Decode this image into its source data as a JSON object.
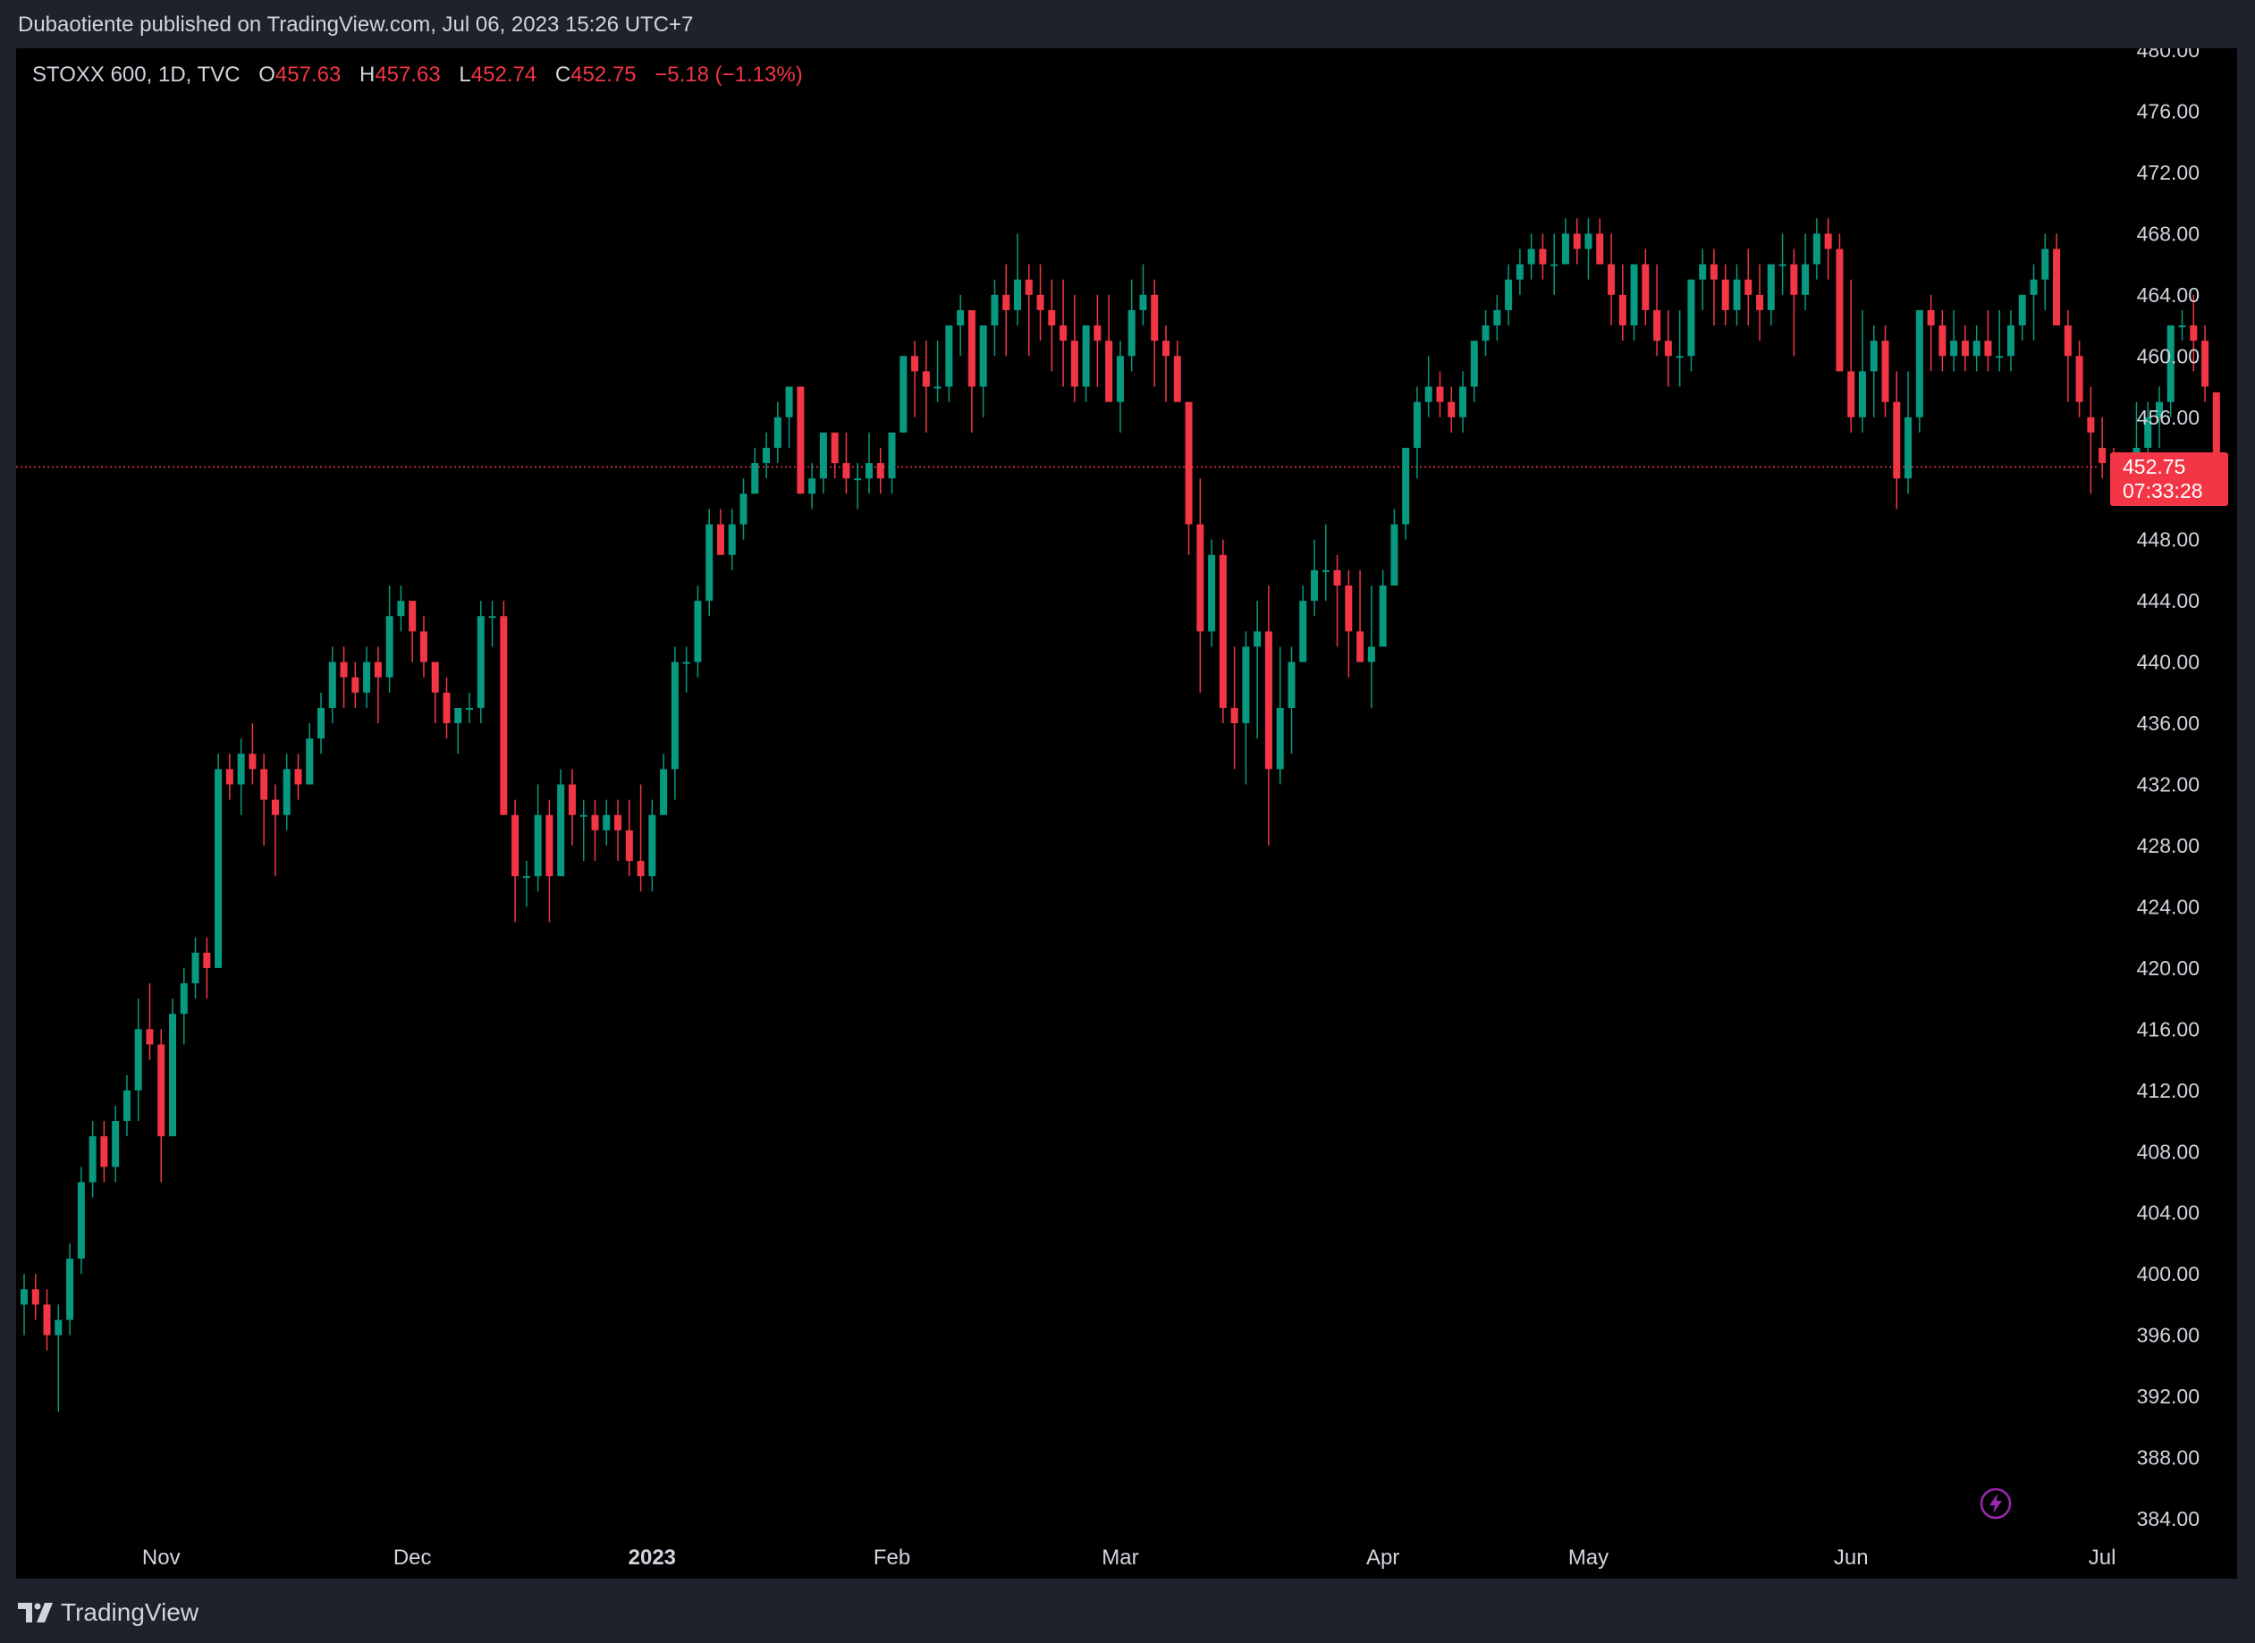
{
  "header": {
    "published": "Dubaotiente published on TradingView.com, Jul 06, 2023 15:26 UTC+7"
  },
  "legend": {
    "symbol": "STOXX 600, 1D, TVC",
    "open_label": "O",
    "open": "457.63",
    "high_label": "H",
    "high": "457.63",
    "low_label": "L",
    "low": "452.74",
    "close_label": "C",
    "close": "452.75",
    "change": "−5.18 (−1.13%)"
  },
  "price_tag": {
    "price": "452.75",
    "countdown": "07:33:28"
  },
  "footer": {
    "brand": "TradingView"
  },
  "icons": {
    "flash": "flash-icon",
    "logo": "tradingview-logo-icon"
  },
  "colors": {
    "up": "#089981",
    "down": "#f23645",
    "background": "#000000",
    "axis_text": "#d1d4dc",
    "price_line": "#f23645",
    "flash": "#9c27b0"
  },
  "chart_data": {
    "type": "candlestick",
    "ylim": [
      383,
      480
    ],
    "y_ticks": [
      "480.00",
      "476.00",
      "472.00",
      "468.00",
      "464.00",
      "460.00",
      "456.00",
      "452.00",
      "448.00",
      "444.00",
      "440.00",
      "436.00",
      "432.00",
      "428.00",
      "424.00",
      "420.00",
      "416.00",
      "412.00",
      "408.00",
      "404.00",
      "400.00",
      "396.00",
      "392.00",
      "388.00",
      "384.00"
    ],
    "x_ticks": [
      {
        "label": "Nov",
        "index": 12,
        "bold": false
      },
      {
        "label": "Dec",
        "index": 34,
        "bold": false
      },
      {
        "label": "2023",
        "index": 55,
        "bold": true
      },
      {
        "label": "Feb",
        "index": 76,
        "bold": false
      },
      {
        "label": "Mar",
        "index": 96,
        "bold": false
      },
      {
        "label": "Apr",
        "index": 119,
        "bold": false
      },
      {
        "label": "May",
        "index": 137,
        "bold": false
      },
      {
        "label": "Jun",
        "index": 160,
        "bold": false
      },
      {
        "label": "Jul",
        "index": 182,
        "bold": false
      }
    ],
    "last_price": 452.75,
    "candles": [
      [
        398,
        400,
        396,
        399
      ],
      [
        399,
        400,
        397,
        398
      ],
      [
        398,
        399,
        395,
        396
      ],
      [
        396,
        398,
        391,
        397
      ],
      [
        397,
        402,
        396,
        401
      ],
      [
        401,
        407,
        400,
        406
      ],
      [
        406,
        410,
        405,
        409
      ],
      [
        409,
        410,
        406,
        407
      ],
      [
        407,
        411,
        406,
        410
      ],
      [
        410,
        413,
        409,
        412
      ],
      [
        412,
        418,
        410,
        416
      ],
      [
        416,
        419,
        414,
        415
      ],
      [
        415,
        416,
        406,
        409
      ],
      [
        409,
        418,
        409,
        417
      ],
      [
        417,
        420,
        415,
        419
      ],
      [
        419,
        422,
        418,
        421
      ],
      [
        421,
        422,
        418,
        420
      ],
      [
        420,
        434,
        420,
        433
      ],
      [
        433,
        434,
        431,
        432
      ],
      [
        432,
        435,
        430,
        434
      ],
      [
        434,
        436,
        432,
        433
      ],
      [
        433,
        434,
        428,
        431
      ],
      [
        431,
        432,
        426,
        430
      ],
      [
        430,
        434,
        429,
        433
      ],
      [
        433,
        434,
        431,
        432
      ],
      [
        432,
        436,
        432,
        435
      ],
      [
        435,
        438,
        434,
        437
      ],
      [
        437,
        441,
        436,
        440
      ],
      [
        440,
        441,
        437,
        439
      ],
      [
        439,
        440,
        437,
        438
      ],
      [
        438,
        441,
        437,
        440
      ],
      [
        440,
        441,
        436,
        439
      ],
      [
        439,
        445,
        438,
        443
      ],
      [
        443,
        445,
        442,
        444
      ],
      [
        444,
        444,
        440,
        442
      ],
      [
        442,
        443,
        439,
        440
      ],
      [
        440,
        440,
        436,
        438
      ],
      [
        438,
        439,
        435,
        436
      ],
      [
        436,
        437,
        434,
        437
      ],
      [
        437,
        438,
        436,
        437
      ],
      [
        437,
        444,
        436,
        443
      ],
      [
        443,
        444,
        441,
        443
      ],
      [
        443,
        444,
        430,
        430
      ],
      [
        430,
        431,
        423,
        426
      ],
      [
        426,
        427,
        424,
        426
      ],
      [
        426,
        432,
        425,
        430
      ],
      [
        430,
        431,
        423,
        426
      ],
      [
        426,
        433,
        426,
        432
      ],
      [
        432,
        433,
        428,
        430
      ],
      [
        430,
        431,
        427,
        430
      ],
      [
        430,
        431,
        427,
        429
      ],
      [
        429,
        431,
        428,
        430
      ],
      [
        430,
        431,
        427,
        429
      ],
      [
        429,
        431,
        426,
        427
      ],
      [
        427,
        432,
        425,
        426
      ],
      [
        426,
        431,
        425,
        430
      ],
      [
        430,
        434,
        430,
        433
      ],
      [
        433,
        441,
        431,
        440
      ],
      [
        440,
        441,
        438,
        440
      ],
      [
        440,
        445,
        439,
        444
      ],
      [
        444,
        450,
        443,
        449
      ],
      [
        449,
        450,
        447,
        447
      ],
      [
        447,
        450,
        446,
        449
      ],
      [
        449,
        452,
        448,
        451
      ],
      [
        451,
        454,
        451,
        453
      ],
      [
        453,
        455,
        452,
        454
      ],
      [
        454,
        457,
        453,
        456
      ],
      [
        456,
        458,
        454,
        458
      ],
      [
        458,
        458,
        451,
        451
      ],
      [
        451,
        453,
        450,
        452
      ],
      [
        452,
        455,
        451,
        455
      ],
      [
        455,
        455,
        452,
        453
      ],
      [
        453,
        455,
        451,
        452
      ],
      [
        452,
        453,
        450,
        452
      ],
      [
        452,
        455,
        451,
        453
      ],
      [
        453,
        454,
        451,
        452
      ],
      [
        452,
        455,
        451,
        455
      ],
      [
        455,
        460,
        455,
        460
      ],
      [
        460,
        461,
        456,
        459
      ],
      [
        459,
        461,
        455,
        458
      ],
      [
        458,
        461,
        457,
        458
      ],
      [
        458,
        462,
        457,
        462
      ],
      [
        462,
        464,
        460,
        463
      ],
      [
        463,
        463,
        455,
        458
      ],
      [
        458,
        462,
        456,
        462
      ],
      [
        462,
        465,
        460,
        464
      ],
      [
        464,
        466,
        460,
        463
      ],
      [
        463,
        468,
        462,
        465
      ],
      [
        465,
        466,
        460,
        464
      ],
      [
        464,
        466,
        461,
        463
      ],
      [
        463,
        465,
        459,
        462
      ],
      [
        462,
        465,
        458,
        461
      ],
      [
        461,
        464,
        457,
        458
      ],
      [
        458,
        462,
        457,
        462
      ],
      [
        462,
        464,
        458,
        461
      ],
      [
        461,
        464,
        457,
        457
      ],
      [
        457,
        461,
        455,
        460
      ],
      [
        460,
        465,
        459,
        463
      ],
      [
        463,
        466,
        462,
        464
      ],
      [
        464,
        465,
        458,
        461
      ],
      [
        461,
        462,
        457,
        460
      ],
      [
        460,
        461,
        457,
        457
      ],
      [
        457,
        457,
        447,
        449
      ],
      [
        449,
        452,
        438,
        442
      ],
      [
        442,
        448,
        441,
        447
      ],
      [
        447,
        448,
        436,
        437
      ],
      [
        437,
        441,
        433,
        436
      ],
      [
        436,
        442,
        432,
        441
      ],
      [
        441,
        444,
        435,
        442
      ],
      [
        442,
        445,
        428,
        433
      ],
      [
        433,
        441,
        432,
        437
      ],
      [
        437,
        441,
        434,
        440
      ],
      [
        440,
        445,
        440,
        444
      ],
      [
        444,
        448,
        443,
        446
      ],
      [
        446,
        449,
        444,
        446
      ],
      [
        446,
        447,
        441,
        445
      ],
      [
        445,
        446,
        439,
        442
      ],
      [
        442,
        446,
        440,
        440
      ],
      [
        440,
        445,
        437,
        441
      ],
      [
        441,
        446,
        441,
        445
      ],
      [
        445,
        450,
        445,
        449
      ],
      [
        449,
        454,
        448,
        454
      ],
      [
        454,
        458,
        452,
        457
      ],
      [
        457,
        460,
        456,
        458
      ],
      [
        458,
        459,
        456,
        457
      ],
      [
        457,
        458,
        455,
        456
      ],
      [
        456,
        459,
        455,
        458
      ],
      [
        458,
        461,
        457,
        461
      ],
      [
        461,
        463,
        460,
        462
      ],
      [
        462,
        464,
        461,
        463
      ],
      [
        463,
        466,
        462,
        465
      ],
      [
        465,
        467,
        464,
        466
      ],
      [
        466,
        468,
        465,
        467
      ],
      [
        467,
        468,
        465,
        466
      ],
      [
        466,
        468,
        464,
        466
      ],
      [
        466,
        469,
        466,
        468
      ],
      [
        468,
        469,
        466,
        467
      ],
      [
        467,
        469,
        465,
        468
      ],
      [
        468,
        469,
        466,
        466
      ],
      [
        466,
        468,
        462,
        464
      ],
      [
        464,
        466,
        461,
        462
      ],
      [
        462,
        466,
        461,
        466
      ],
      [
        466,
        467,
        462,
        463
      ],
      [
        463,
        466,
        460,
        461
      ],
      [
        461,
        463,
        458,
        460
      ],
      [
        460,
        463,
        458,
        460
      ],
      [
        460,
        465,
        459,
        465
      ],
      [
        465,
        467,
        463,
        466
      ],
      [
        466,
        467,
        462,
        465
      ],
      [
        465,
        466,
        462,
        463
      ],
      [
        463,
        466,
        462,
        465
      ],
      [
        465,
        467,
        462,
        464
      ],
      [
        464,
        466,
        461,
        463
      ],
      [
        463,
        466,
        462,
        466
      ],
      [
        466,
        468,
        464,
        466
      ],
      [
        466,
        467,
        460,
        464
      ],
      [
        464,
        468,
        463,
        466
      ],
      [
        466,
        469,
        465,
        468
      ],
      [
        468,
        469,
        465,
        467
      ],
      [
        467,
        468,
        459,
        459
      ],
      [
        459,
        465,
        455,
        456
      ],
      [
        456,
        463,
        455,
        459
      ],
      [
        459,
        462,
        456,
        461
      ],
      [
        461,
        462,
        456,
        457
      ],
      [
        457,
        459,
        450,
        452
      ],
      [
        452,
        459,
        451,
        456
      ],
      [
        456,
        463,
        455,
        463
      ],
      [
        463,
        464,
        459,
        462
      ],
      [
        462,
        463,
        459,
        460
      ],
      [
        460,
        463,
        459,
        461
      ],
      [
        461,
        462,
        459,
        460
      ],
      [
        460,
        462,
        459,
        461
      ],
      [
        461,
        463,
        459,
        460
      ],
      [
        460,
        463,
        459,
        460
      ],
      [
        460,
        463,
        459,
        462
      ],
      [
        462,
        464,
        461,
        464
      ],
      [
        464,
        466,
        461,
        465
      ],
      [
        465,
        468,
        463,
        467
      ],
      [
        467,
        468,
        462,
        462
      ],
      [
        462,
        463,
        457,
        460
      ],
      [
        460,
        461,
        456,
        457
      ],
      [
        456,
        458,
        451,
        455
      ],
      [
        454,
        456,
        452,
        453
      ],
      [
        453,
        454,
        451,
        452
      ],
      [
        452,
        453,
        451,
        452
      ],
      [
        452,
        457,
        452,
        454
      ],
      [
        454,
        457,
        453,
        456
      ],
      [
        456,
        458,
        454,
        457
      ],
      [
        457,
        462,
        456,
        462
      ],
      [
        462,
        463,
        461,
        462
      ],
      [
        462,
        464,
        459,
        461
      ],
      [
        461,
        462,
        457,
        458
      ],
      [
        457.63,
        457.63,
        452.74,
        452.75
      ]
    ]
  }
}
